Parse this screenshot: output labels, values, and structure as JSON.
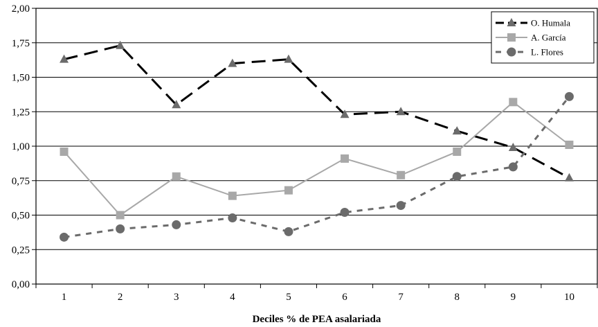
{
  "chart_data": {
    "type": "line",
    "title": "",
    "xlabel": "Deciles % de PEA asalariada",
    "ylabel": "",
    "categories": [
      "1",
      "2",
      "3",
      "4",
      "5",
      "6",
      "7",
      "8",
      "9",
      "10"
    ],
    "ylim": [
      0,
      2
    ],
    "y_ticks": [
      "0,00",
      "0,25",
      "0,50",
      "0,75",
      "1,00",
      "1,25",
      "1,50",
      "1,75",
      "2,00"
    ],
    "grid": "horizontal",
    "legend_position": "top-right",
    "series": [
      {
        "name": "O. Humala",
        "color": "#000000",
        "marker_color": "#6b6b6b",
        "marker": "triangle",
        "dash": "long-dash",
        "values": [
          1.63,
          1.73,
          1.3,
          1.6,
          1.63,
          1.23,
          1.25,
          1.11,
          0.99,
          0.77
        ]
      },
      {
        "name": "A. García",
        "color": "#a8a8a8",
        "marker_color": "#a8a8a8",
        "marker": "square",
        "dash": "solid",
        "values": [
          0.96,
          0.5,
          0.78,
          0.64,
          0.68,
          0.91,
          0.79,
          0.96,
          1.32,
          1.01
        ]
      },
      {
        "name": "L. Flores",
        "color": "#6b6b6b",
        "marker_color": "#6b6b6b",
        "marker": "circle",
        "dash": "short-dash",
        "values": [
          0.34,
          0.4,
          0.43,
          0.48,
          0.38,
          0.52,
          0.57,
          0.78,
          0.85,
          1.36
        ]
      }
    ]
  }
}
